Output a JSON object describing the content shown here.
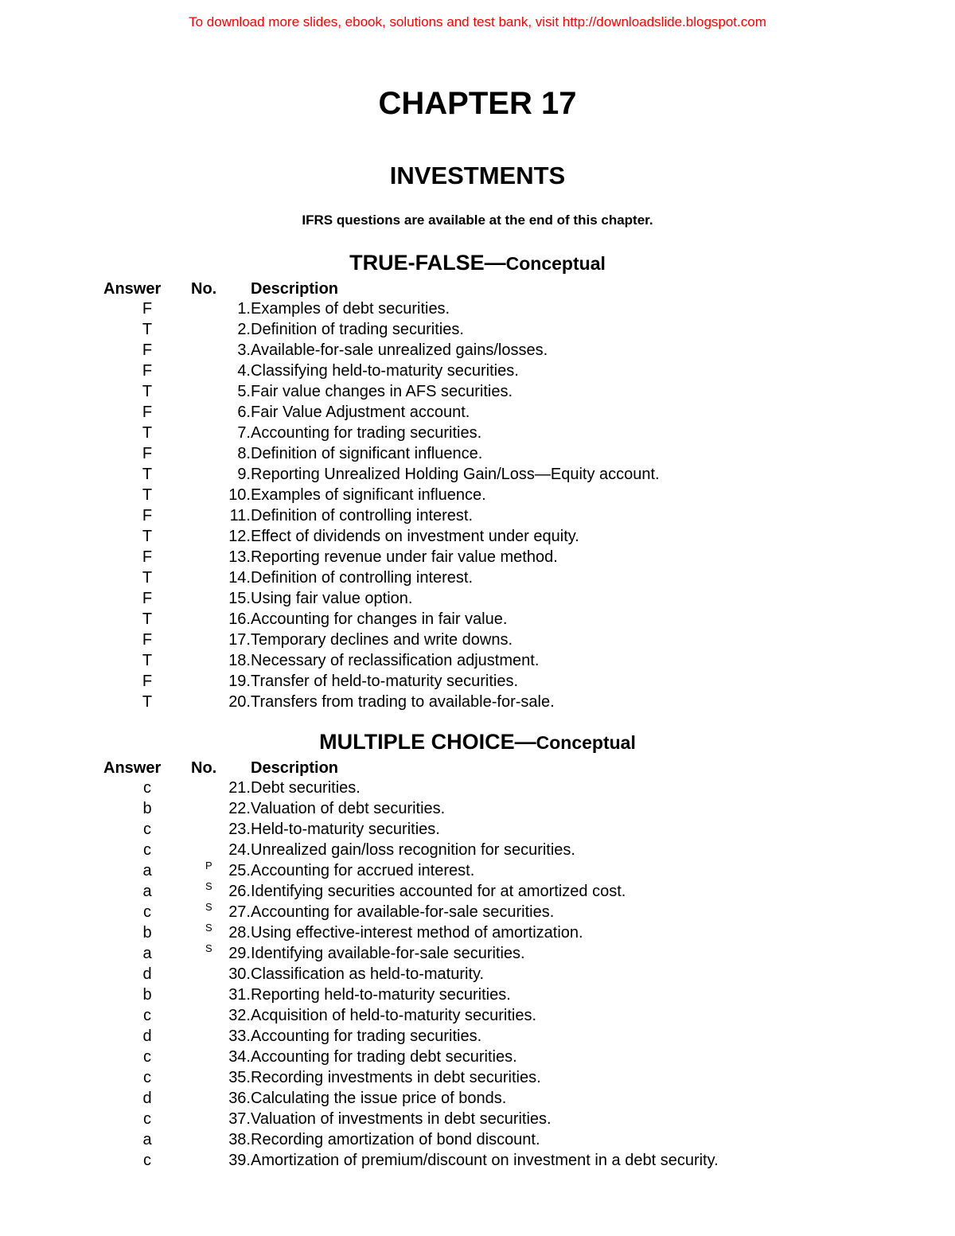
{
  "banner": "To download more slides, ebook, solutions and test bank, visit http://downloadslide.blogspot.com",
  "chapter_title": "CHAPTER 17",
  "subtitle": "INVESTMENTS",
  "ifrs_note": "IFRS questions are available at the end of this chapter.",
  "headers": {
    "answer": "Answer",
    "no": "No.",
    "description": "Description"
  },
  "sections": [
    {
      "title_big": "TRUE-FALSE—",
      "title_small": "Conceptual",
      "rows": [
        {
          "answer": "F",
          "no": "1.",
          "sup": "",
          "desc": "Examples of debt securities."
        },
        {
          "answer": "T",
          "no": "2.",
          "sup": "",
          "desc": "Definition of trading securities."
        },
        {
          "answer": "F",
          "no": "3.",
          "sup": "",
          "desc": "Available-for-sale unrealized gains/losses."
        },
        {
          "answer": "F",
          "no": "4.",
          "sup": "",
          "desc": "Classifying held-to-maturity securities."
        },
        {
          "answer": "T",
          "no": "5.",
          "sup": "",
          "desc": "Fair value changes in AFS securities."
        },
        {
          "answer": "F",
          "no": "6.",
          "sup": "",
          "desc": "Fair Value Adjustment account."
        },
        {
          "answer": "T",
          "no": "7.",
          "sup": "",
          "desc": "Accounting for trading securities."
        },
        {
          "answer": "F",
          "no": "8.",
          "sup": "",
          "desc": "Definition of significant influence."
        },
        {
          "answer": "T",
          "no": "9.",
          "sup": "",
          "desc": "Reporting Unrealized Holding Gain/Loss—Equity account."
        },
        {
          "answer": "T",
          "no": "10.",
          "sup": "",
          "desc": "Examples of significant influence."
        },
        {
          "answer": "F",
          "no": "11.",
          "sup": "",
          "desc": "Definition of controlling interest."
        },
        {
          "answer": "T",
          "no": "12.",
          "sup": "",
          "desc": "Effect of dividends on investment under equity."
        },
        {
          "answer": "F",
          "no": "13.",
          "sup": "",
          "desc": "Reporting revenue under fair value method."
        },
        {
          "answer": "T",
          "no": "14.",
          "sup": "",
          "desc": "Definition of controlling interest."
        },
        {
          "answer": "F",
          "no": "15.",
          "sup": "",
          "desc": "Using fair value option."
        },
        {
          "answer": "T",
          "no": "16.",
          "sup": "",
          "desc": "Accounting for changes in fair value."
        },
        {
          "answer": "F",
          "no": "17.",
          "sup": "",
          "desc": "Temporary declines and write downs."
        },
        {
          "answer": "T",
          "no": "18.",
          "sup": "",
          "desc": "Necessary of reclassification adjustment."
        },
        {
          "answer": "F",
          "no": "19.",
          "sup": "",
          "desc": "Transfer of held-to-maturity securities."
        },
        {
          "answer": "T",
          "no": "20.",
          "sup": "",
          "desc": "Transfers from trading to available-for-sale."
        }
      ]
    },
    {
      "title_big": "MULTIPLE CHOICE—",
      "title_small": "Conceptual",
      "rows": [
        {
          "answer": "c",
          "no": "21.",
          "sup": "",
          "desc": "Debt securities."
        },
        {
          "answer": "b",
          "no": "22.",
          "sup": "",
          "desc": "Valuation of debt securities."
        },
        {
          "answer": "c",
          "no": "23.",
          "sup": "",
          "desc": "Held-to-maturity securities."
        },
        {
          "answer": "c",
          "no": "24.",
          "sup": "",
          "desc": "Unrealized gain/loss recognition for securities."
        },
        {
          "answer": "a",
          "no": "25.",
          "sup": "P",
          "desc": "Accounting for accrued interest."
        },
        {
          "answer": "a",
          "no": "26.",
          "sup": "S",
          "desc": "Identifying securities accounted for at amortized cost."
        },
        {
          "answer": "c",
          "no": "27.",
          "sup": "S",
          "desc": "Accounting for available-for-sale securities."
        },
        {
          "answer": "b",
          "no": "28.",
          "sup": "S",
          "desc": "Using effective-interest method of amortization."
        },
        {
          "answer": "a",
          "no": "29.",
          "sup": "S",
          "desc": "Identifying available-for-sale securities."
        },
        {
          "answer": "d",
          "no": "30.",
          "sup": "",
          "desc": "Classification as held-to-maturity."
        },
        {
          "answer": "b",
          "no": "31.",
          "sup": "",
          "desc": "Reporting held-to-maturity securities."
        },
        {
          "answer": "c",
          "no": "32.",
          "sup": "",
          "desc": "Acquisition of held-to-maturity securities."
        },
        {
          "answer": "d",
          "no": "33.",
          "sup": "",
          "desc": "Accounting for trading securities."
        },
        {
          "answer": "c",
          "no": "34.",
          "sup": "",
          "desc": "Accounting for trading debt securities."
        },
        {
          "answer": "c",
          "no": "35.",
          "sup": "",
          "desc": "Recording investments in debt securities."
        },
        {
          "answer": "d",
          "no": "36.",
          "sup": "",
          "desc": "Calculating the issue price of bonds."
        },
        {
          "answer": "c",
          "no": "37.",
          "sup": "",
          "desc": "Valuation of investments in debt securities."
        },
        {
          "answer": "a",
          "no": "38.",
          "sup": "",
          "desc": "Recording amortization of bond discount."
        },
        {
          "answer": "c",
          "no": "39.",
          "sup": "",
          "desc": "Amortization of premium/discount on investment in a debt security."
        }
      ]
    }
  ]
}
